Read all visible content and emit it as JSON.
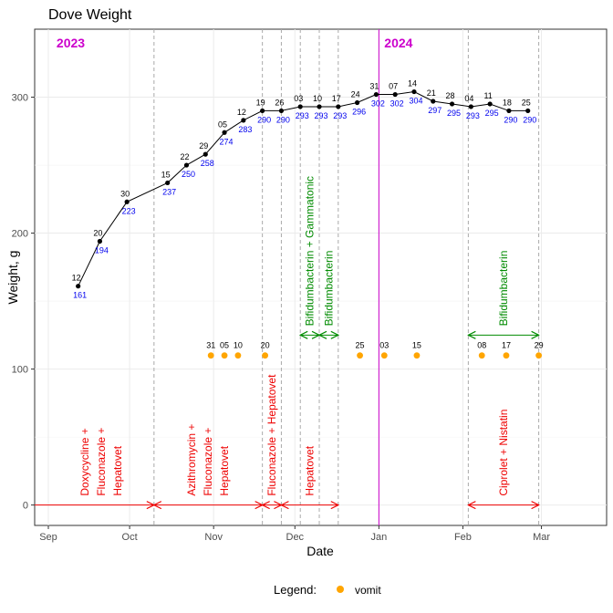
{
  "chart_data": {
    "type": "line",
    "title": "Dove Weight",
    "xlabel": "Date",
    "ylabel": "Weight, g",
    "ylim": [
      -15,
      350
    ],
    "xlim": [
      "2023-09-01",
      "2024-03-20"
    ],
    "yticks": [
      0,
      100,
      200,
      300
    ],
    "xticks": [
      {
        "date": "2023-09-01",
        "label": "Sep"
      },
      {
        "date": "2023-10-01",
        "label": "Oct"
      },
      {
        "date": "2023-11-01",
        "label": "Nov"
      },
      {
        "date": "2023-12-01",
        "label": "Dec"
      },
      {
        "date": "2024-01-01",
        "label": "Jan"
      },
      {
        "date": "2024-02-01",
        "label": "Feb"
      },
      {
        "date": "2024-03-01",
        "label": "Mar"
      }
    ],
    "grid": true,
    "colors": {
      "line": "#000000",
      "value_label": "#0000ee",
      "vomit": "#ffa500",
      "treatment_red": "#ee0000",
      "treatment_green": "#008b00",
      "year_line": "#cc00cc",
      "dashed_line": "#aaaaaa"
    },
    "year_labels": [
      {
        "date": "2023-09-04",
        "label": "2023"
      },
      {
        "date": "2024-01-03",
        "label": "2024"
      }
    ],
    "year_divider": "2024-01-01",
    "weight": [
      {
        "date": "2023-09-12",
        "day": "12",
        "value": 161
      },
      {
        "date": "2023-09-20",
        "day": "20",
        "value": 194
      },
      {
        "date": "2023-09-30",
        "day": "30",
        "value": 223
      },
      {
        "date": "2023-10-15",
        "day": "15",
        "value": 237
      },
      {
        "date": "2023-10-22",
        "day": "22",
        "value": 250
      },
      {
        "date": "2023-10-29",
        "day": "29",
        "value": 258
      },
      {
        "date": "2023-11-05",
        "day": "05",
        "value": 274
      },
      {
        "date": "2023-11-12",
        "day": "12",
        "value": 283
      },
      {
        "date": "2023-11-19",
        "day": "19",
        "value": 290
      },
      {
        "date": "2023-11-26",
        "day": "26",
        "value": 290
      },
      {
        "date": "2023-12-03",
        "day": "03",
        "value": 293
      },
      {
        "date": "2023-12-10",
        "day": "10",
        "value": 293
      },
      {
        "date": "2023-12-17",
        "day": "17",
        "value": 293
      },
      {
        "date": "2023-12-24",
        "day": "24",
        "value": 296
      },
      {
        "date": "2023-12-31",
        "day": "31",
        "value": 302
      },
      {
        "date": "2024-01-07",
        "day": "07",
        "value": 302
      },
      {
        "date": "2024-01-14",
        "day": "14",
        "value": 304
      },
      {
        "date": "2024-01-21",
        "day": "21",
        "value": 297
      },
      {
        "date": "2024-01-28",
        "day": "28",
        "value": 295
      },
      {
        "date": "2024-02-04",
        "day": "04",
        "value": 293
      },
      {
        "date": "2024-02-11",
        "day": "11",
        "value": 295
      },
      {
        "date": "2024-02-18",
        "day": "18",
        "value": 290
      },
      {
        "date": "2024-02-25",
        "day": "25",
        "value": 290
      }
    ],
    "vomit": {
      "value": 110,
      "events": [
        {
          "date": "2023-10-31",
          "day": "31"
        },
        {
          "date": "2023-11-05",
          "day": "05"
        },
        {
          "date": "2023-11-10",
          "day": "10"
        },
        {
          "date": "2023-11-20",
          "day": "20"
        },
        {
          "date": "2023-12-25",
          "day": "25"
        },
        {
          "date": "2024-01-03",
          "day": "03"
        },
        {
          "date": "2024-01-15",
          "day": "15"
        },
        {
          "date": "2024-02-08",
          "day": "08"
        },
        {
          "date": "2024-02-17",
          "day": "17"
        },
        {
          "date": "2024-02-29",
          "day": "29"
        }
      ]
    },
    "treatments": [
      {
        "start": "2023-09-01",
        "end": "2023-10-10",
        "value": 0,
        "color": "red",
        "lines": [
          "Doxycycline +",
          "Fluconazole +",
          "Hepatovet"
        ]
      },
      {
        "start": "2023-10-10",
        "end": "2023-11-19",
        "value": 0,
        "color": "red",
        "lines": [
          "Azithromycin +",
          "Fluconazole +",
          "Hepatovet"
        ]
      },
      {
        "start": "2023-11-19",
        "end": "2023-11-26",
        "value": 0,
        "color": "red",
        "lines": [
          "Fluconazole + Hepatovet"
        ]
      },
      {
        "start": "2023-11-26",
        "end": "2023-12-17",
        "value": 0,
        "color": "red",
        "lines": [
          "Hepatovet"
        ]
      },
      {
        "start": "2024-02-03",
        "end": "2024-02-29",
        "value": 0,
        "color": "red",
        "lines": [
          "Ciprolet + Nistatin"
        ]
      },
      {
        "start": "2023-12-03",
        "end": "2023-12-10",
        "value": 125,
        "color": "green",
        "lines": [
          "Bifidumbacterin + Gammatonic"
        ]
      },
      {
        "start": "2023-12-10",
        "end": "2023-12-17",
        "value": 125,
        "color": "green",
        "lines": [
          "Bifidumbacterin"
        ]
      },
      {
        "start": "2024-02-03",
        "end": "2024-02-29",
        "value": 125,
        "color": "green",
        "lines": [
          "Bifidumbacterin"
        ]
      }
    ],
    "dashed_lines": [
      "2023-10-10",
      "2023-11-19",
      "2023-11-26",
      "2023-12-03",
      "2023-12-10",
      "2023-12-17",
      "2024-02-03",
      "2024-02-29"
    ],
    "legend": {
      "title": "Legend:",
      "entries": [
        {
          "label": "vomit",
          "color": "#ffa500"
        }
      ],
      "position": "bottom"
    }
  }
}
